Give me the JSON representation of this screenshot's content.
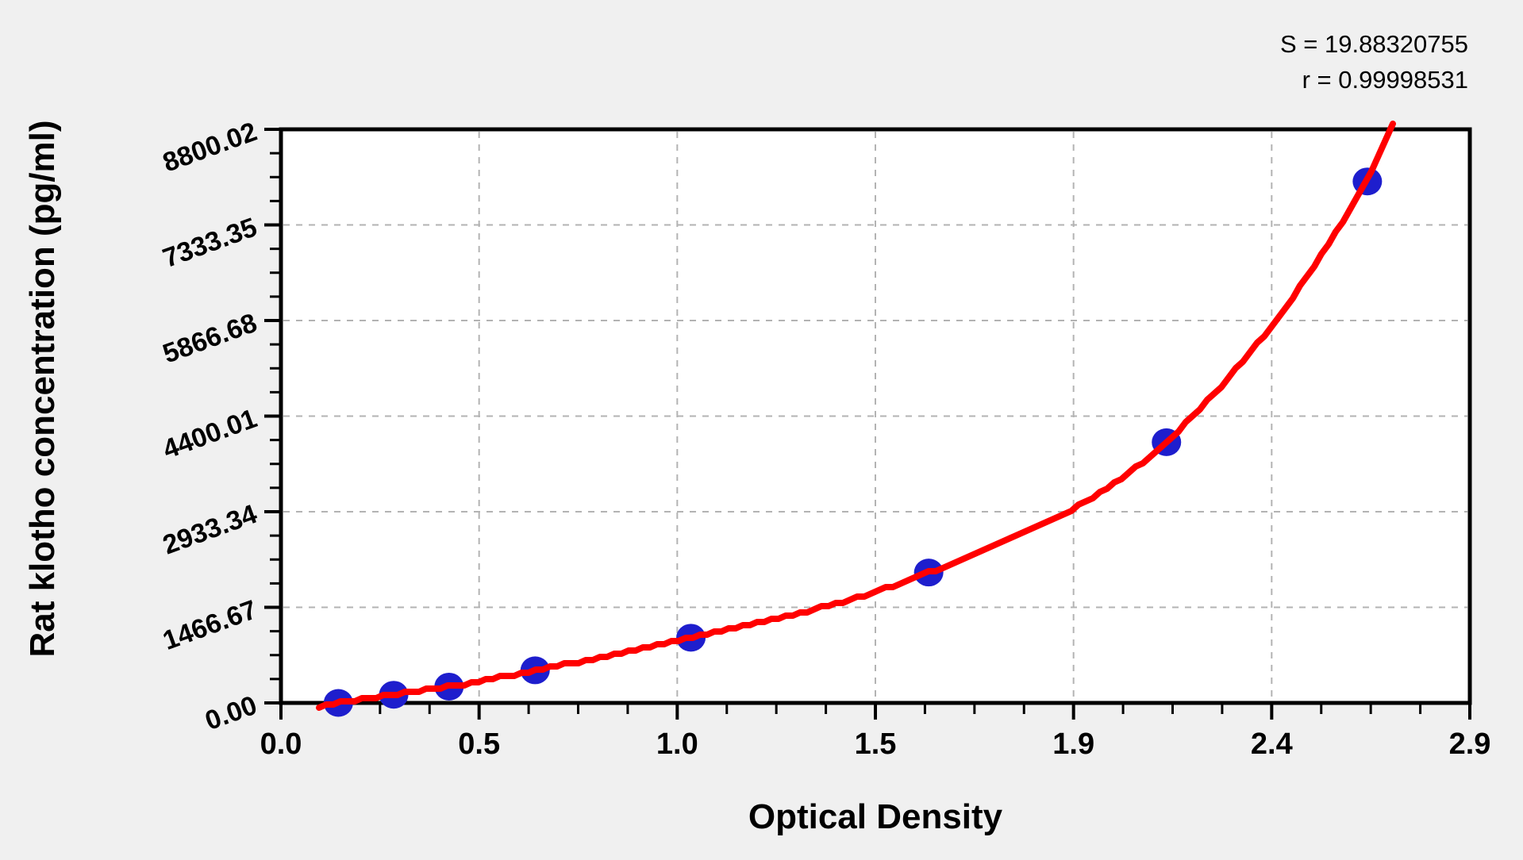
{
  "stats": {
    "s_line": "S = 19.88320755",
    "r_line": "r = 0.99998531"
  },
  "chart_data": {
    "type": "scatter",
    "title": "",
    "xlabel": "Optical Density",
    "ylabel": "Rat klotho concentration (pg/ml)",
    "xlim": [
      0.0,
      2.9
    ],
    "ylim": [
      0.0,
      8800.02
    ],
    "x_tick_labels": [
      "0.0",
      "0.5",
      "1.0",
      "1.5",
      "1.9",
      "2.4",
      "2.9"
    ],
    "y_tick_labels": [
      "0.00",
      "1466.67",
      "2933.34",
      "4400.01",
      "5866.68",
      "7333.35",
      "8800.02"
    ],
    "major_intervals": 6,
    "minor_ticks_per_interval": 3,
    "grid": "dashed gray lines at interior major ticks, both axes",
    "legend": "none",
    "fit": {
      "S": 19.88320755,
      "r": 0.99998531,
      "model": "standard curve fit"
    },
    "points": [
      {
        "od": 0.14,
        "conc": 0
      },
      {
        "od": 0.275,
        "conc": 125
      },
      {
        "od": 0.41,
        "conc": 250
      },
      {
        "od": 0.62,
        "conc": 500
      },
      {
        "od": 1.0,
        "conc": 1000
      },
      {
        "od": 1.58,
        "conc": 2000
      },
      {
        "od": 2.16,
        "conc": 4000
      },
      {
        "od": 2.65,
        "conc": 8000
      }
    ],
    "curve_extension": {
      "start": [
        0.095,
        -80
      ],
      "end": [
        2.715,
        8900
      ]
    },
    "colors": {
      "curve": "#ff0000",
      "points": "#1e1ecd",
      "grid": "#b3b3b3",
      "axis": "#000000",
      "plot_bg": "#ffffff",
      "page_bg": "#f0f0f0",
      "text": "#000000"
    }
  }
}
